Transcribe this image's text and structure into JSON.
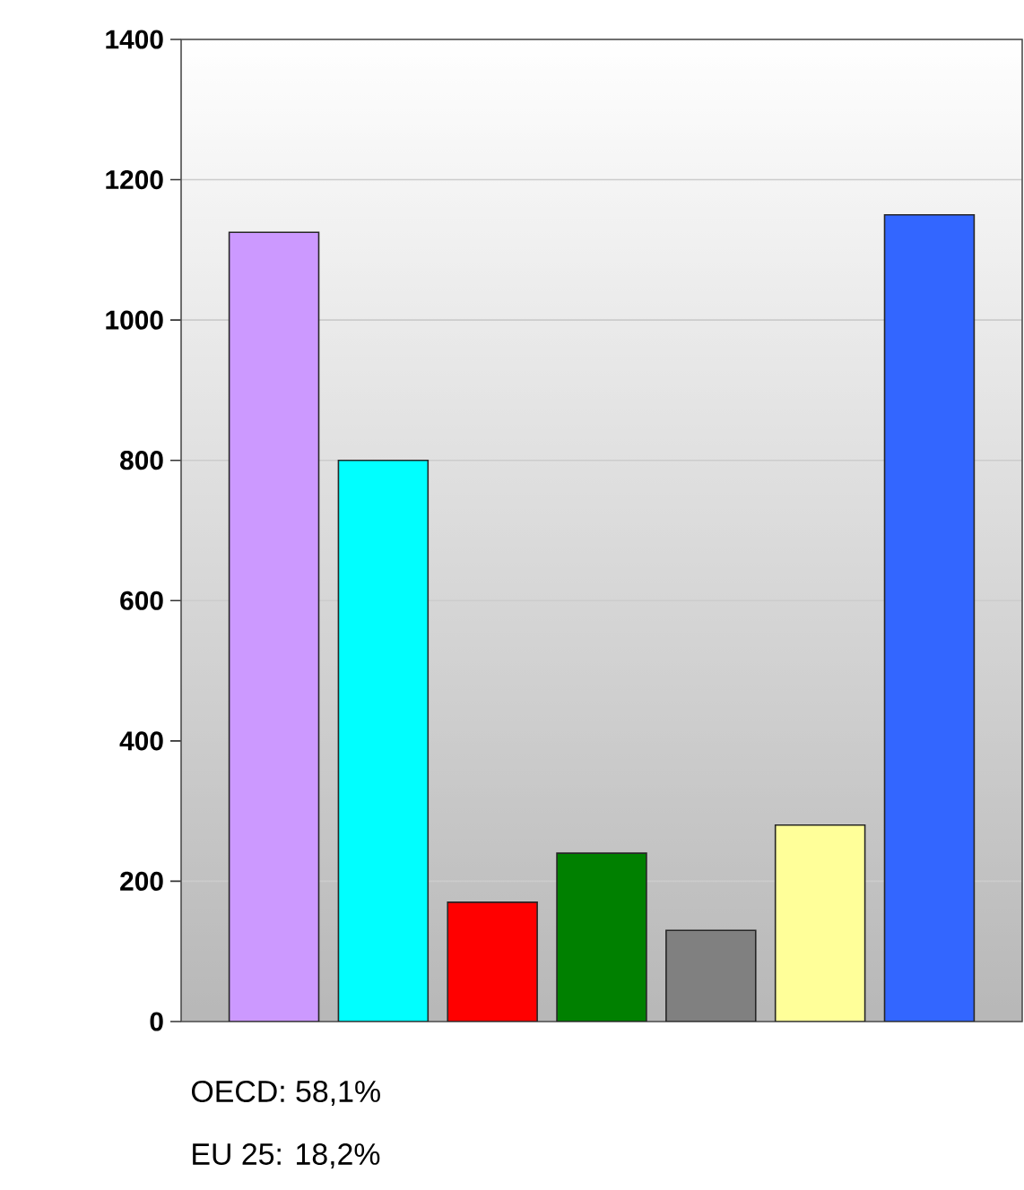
{
  "chart_data": {
    "type": "bar",
    "categories": [
      null,
      null,
      null,
      null,
      null,
      null,
      null
    ],
    "values": [
      1125,
      800,
      170,
      240,
      130,
      280,
      1150
    ],
    "colors": [
      "#cc99ff",
      "#00ffff",
      "#ff0000",
      "#008000",
      "#808080",
      "#ffff99",
      "#3366ff"
    ],
    "ylim": [
      0,
      1400
    ],
    "yticks": [
      0,
      200,
      400,
      600,
      800,
      1000,
      1200,
      1400
    ],
    "grid": "y",
    "tick_labels": "y",
    "annotations": [
      "OECD: 58,1%",
      "EU 25: 18,2%"
    ]
  }
}
